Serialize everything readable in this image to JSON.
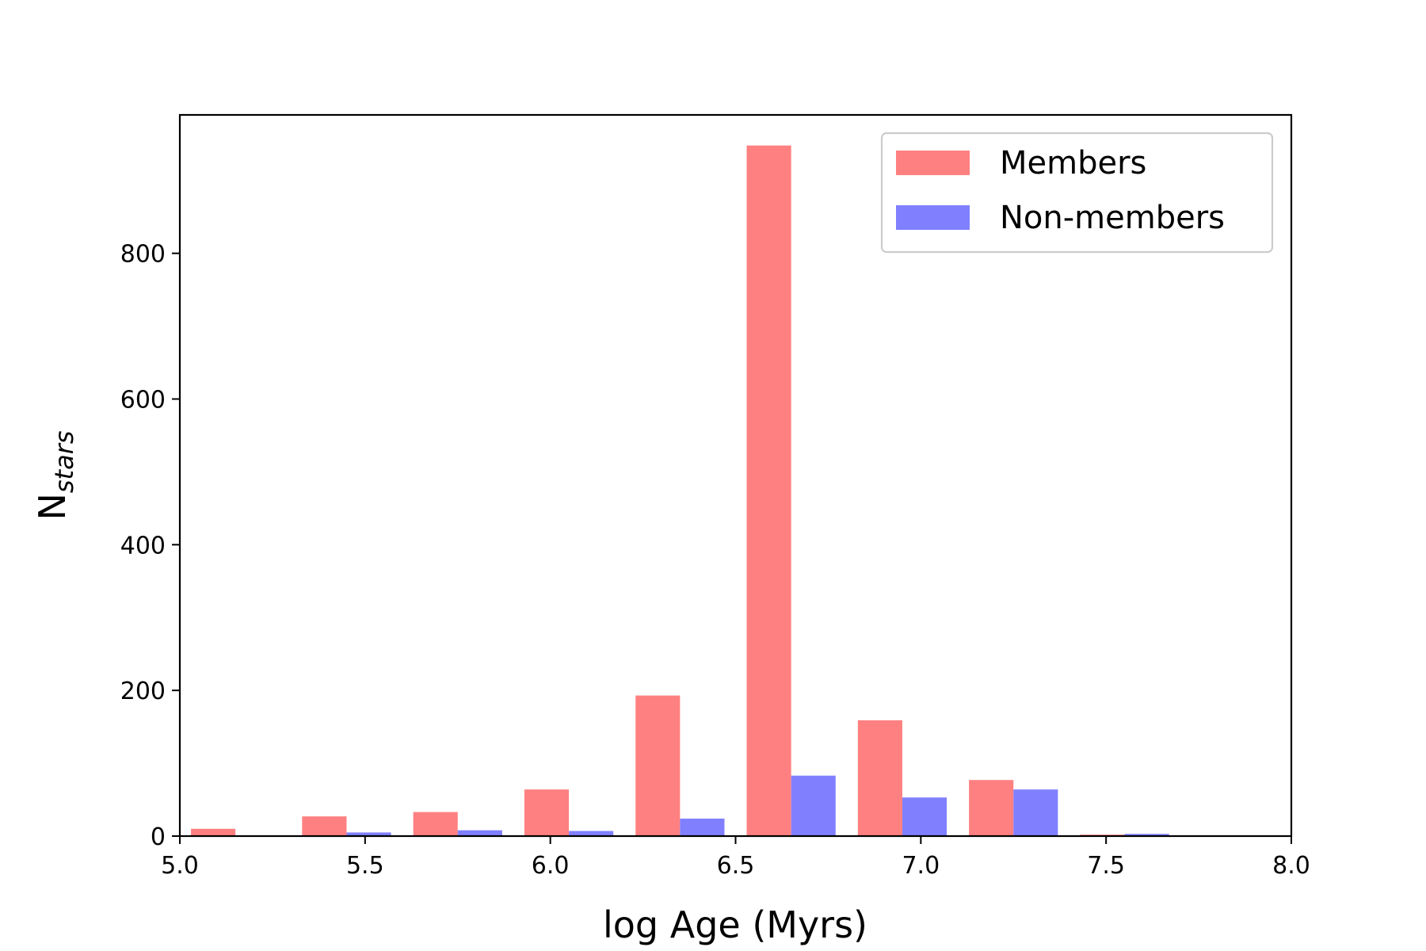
{
  "chart_data": {
    "type": "bar",
    "xlabel": "log Age (Myrs)",
    "ylabel": {
      "main": "N",
      "sub": "stars"
    },
    "xlim": [
      5.0,
      8.0
    ],
    "ylim": [
      0,
      990
    ],
    "xticks": [
      5.0,
      5.5,
      6.0,
      6.5,
      7.0,
      7.5,
      8.0
    ],
    "xtick_labels": [
      "5.0",
      "5.5",
      "6.0",
      "6.5",
      "7.0",
      "7.5",
      "8.0"
    ],
    "yticks": [
      0,
      200,
      400,
      600,
      800
    ],
    "ytick_labels": [
      "0",
      "200",
      "400",
      "600",
      "800"
    ],
    "bins": [
      5.0,
      5.3,
      5.6,
      5.9,
      6.2,
      6.5,
      6.8,
      7.1,
      7.4,
      7.7
    ],
    "bin_width": 0.3,
    "grid": false,
    "legend_position": "top-right",
    "series": [
      {
        "name": "Members",
        "color": "#ff8080",
        "values": [
          10,
          27,
          33,
          64,
          193,
          948,
          159,
          77,
          2,
          0
        ]
      },
      {
        "name": "Non-members",
        "color": "#8080ff",
        "values": [
          0,
          5,
          8,
          7,
          24,
          83,
          53,
          64,
          3,
          0
        ]
      }
    ]
  }
}
